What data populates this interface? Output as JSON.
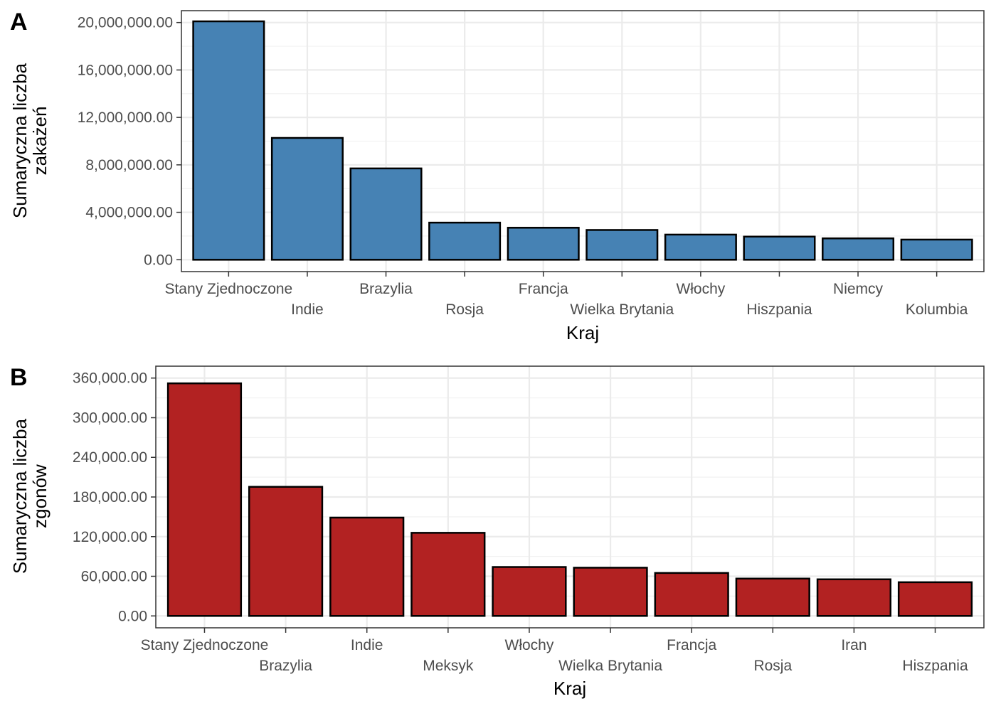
{
  "chart_data": [
    {
      "type": "bar",
      "tag": "A",
      "categories": [
        "Stany Zjednoczone",
        "Indie",
        "Brazylia",
        "Rosja",
        "Francja",
        "Wielka Brytania",
        "Włochy",
        "Hiszpania",
        "Niemcy",
        "Kolumbia"
      ],
      "values": [
        20100000,
        10270000,
        7700000,
        3130000,
        2700000,
        2510000,
        2120000,
        1950000,
        1800000,
        1700000
      ],
      "ylabel": [
        "Sumaryczna liczba",
        "zakażeń"
      ],
      "xlabel": "Kraj",
      "ylim": [
        0,
        20000000
      ],
      "yticks": [
        0,
        4000000,
        8000000,
        12000000,
        16000000,
        20000000
      ],
      "ytick_labels": [
        "0.00",
        "4,000,000.00",
        "8,000,000.00",
        "12,000,000.00",
        "16,000,000.00",
        "20,000,000.00"
      ],
      "bar_color": "#4682B4",
      "grid": true
    },
    {
      "type": "bar",
      "tag": "B",
      "categories": [
        "Stany Zjednoczone",
        "Brazylia",
        "Indie",
        "Meksyk",
        "Włochy",
        "Wielka Brytania",
        "Francja",
        "Rosja",
        "Iran",
        "Hiszpania"
      ],
      "values": [
        352000,
        195400,
        148800,
        125800,
        74000,
        73000,
        65000,
        56500,
        55400,
        51000
      ],
      "ylabel": [
        "Sumaryczna liczba",
        "zgonów"
      ],
      "xlabel": "Kraj",
      "ylim": [
        0,
        360000
      ],
      "yticks": [
        0,
        60000,
        120000,
        180000,
        240000,
        300000,
        360000
      ],
      "ytick_labels": [
        "0.00",
        "60,000.00",
        "120,000.00",
        "180,000.00",
        "240,000.00",
        "300,000.00",
        "360,000.00"
      ],
      "bar_color": "#B22222",
      "grid": true
    }
  ]
}
